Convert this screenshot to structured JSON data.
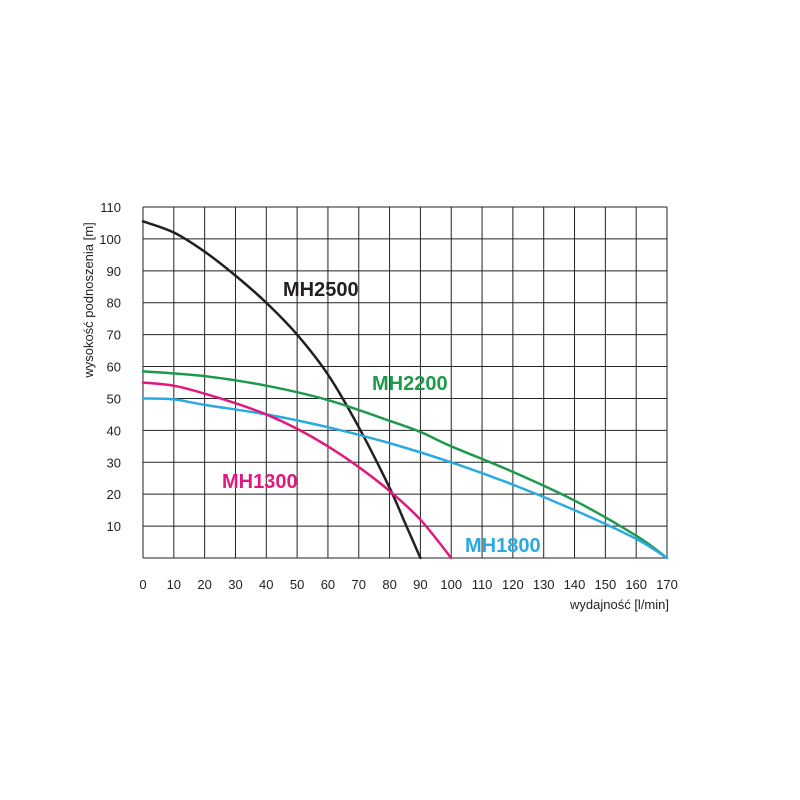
{
  "chart_data": {
    "type": "line",
    "xlabel": "wydajność [l/min]",
    "ylabel": "wysokość podnoszenia [m]",
    "xlim": [
      0,
      170
    ],
    "ylim": [
      0,
      110
    ],
    "x_ticks": [
      0,
      10,
      20,
      30,
      40,
      50,
      60,
      70,
      80,
      90,
      100,
      110,
      120,
      130,
      140,
      150,
      160,
      170
    ],
    "y_ticks": [
      10,
      20,
      30,
      40,
      50,
      60,
      70,
      80,
      90,
      100,
      110
    ],
    "grid": true,
    "series": [
      {
        "name": "MH2500",
        "color": "#231f20",
        "x": [
          0,
          10,
          20,
          30,
          40,
          50,
          60,
          70,
          80,
          85,
          90
        ],
        "y": [
          105.5,
          102,
          96,
          88.5,
          80,
          70,
          57.5,
          41,
          22,
          11,
          0
        ]
      },
      {
        "name": "MH2200",
        "color": "#1e9a4c",
        "x": [
          0,
          20,
          40,
          60,
          80,
          90,
          100,
          120,
          140,
          160,
          170
        ],
        "y": [
          58.5,
          57,
          54,
          49.5,
          43,
          39.5,
          35,
          27,
          18,
          7,
          0
        ]
      },
      {
        "name": "MH1800",
        "color": "#2aaae1",
        "x": [
          0,
          10,
          20,
          40,
          60,
          80,
          100,
          120,
          140,
          160,
          170
        ],
        "y": [
          50,
          49.7,
          48,
          45,
          41,
          36,
          30,
          23,
          15,
          6,
          0
        ]
      },
      {
        "name": "MH1300",
        "color": "#e0197d",
        "x": [
          0,
          10,
          20,
          30,
          40,
          50,
          60,
          70,
          80,
          90,
          100
        ],
        "y": [
          55,
          54,
          51.5,
          48.5,
          45,
          40.5,
          35,
          28.5,
          21,
          12,
          0
        ]
      }
    ]
  }
}
